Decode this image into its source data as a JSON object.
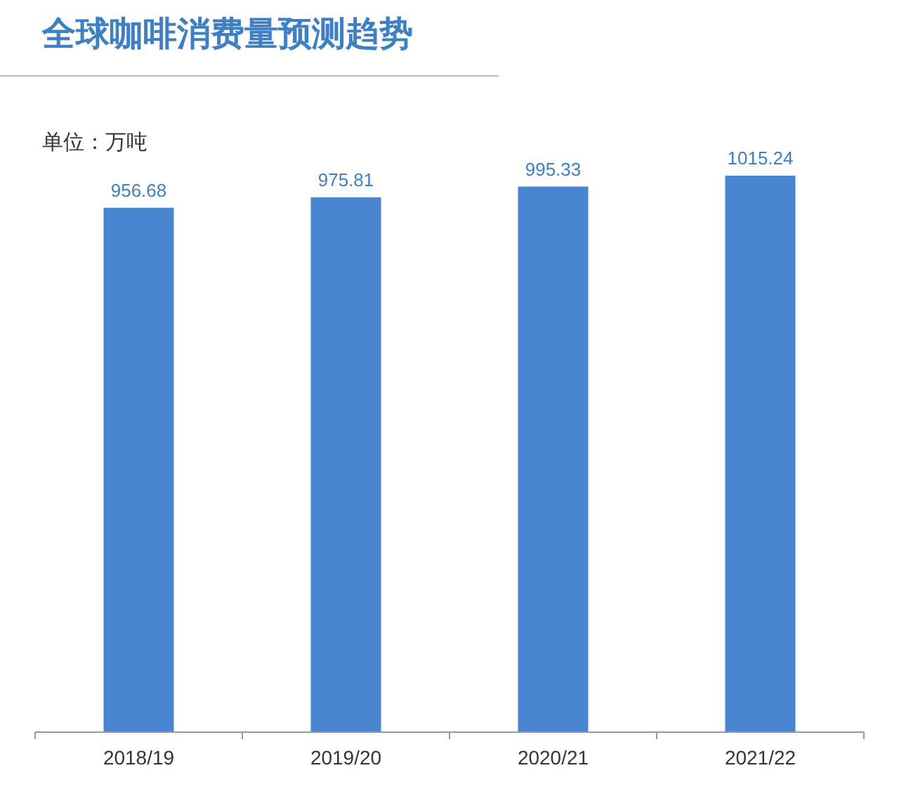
{
  "chart_data": {
    "type": "bar",
    "title": "全球咖啡消费量预测趋势",
    "subtitle": "单位：万吨",
    "categories": [
      "2018/19",
      "2019/20",
      "2020/21",
      "2021/22"
    ],
    "values": [
      956.68,
      975.81,
      995.33,
      1015.24
    ],
    "color": "#4a86d0",
    "data_labels": true
  }
}
